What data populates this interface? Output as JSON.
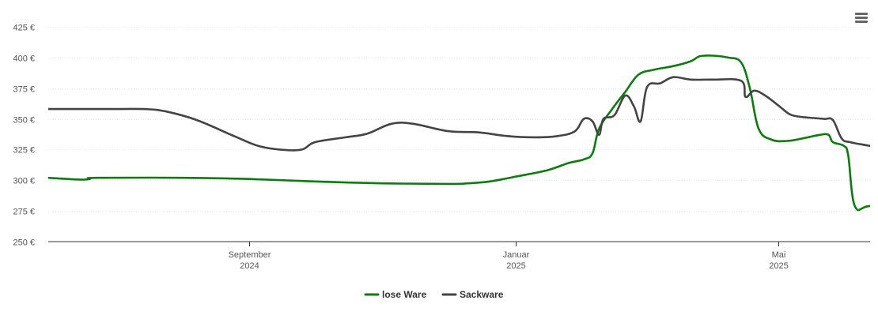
{
  "menu": {
    "icon": "hamburger-menu-icon"
  },
  "chart_data": {
    "type": "line",
    "title": "",
    "xlabel": "",
    "ylabel": "",
    "ylim": [
      250,
      425
    ],
    "y_ticks": [
      "250 €",
      "275 €",
      "300 €",
      "325 €",
      "350 €",
      "375 €",
      "400 €",
      "425 €"
    ],
    "y_tick_values": [
      250,
      275,
      300,
      325,
      350,
      375,
      400,
      425
    ],
    "xlim": [
      "2024-06-01",
      "2025-06-12"
    ],
    "x_ticks": [
      {
        "date": "2024-09-01",
        "label1": "September",
        "label2": "2024"
      },
      {
        "date": "2025-01-01",
        "label1": "Januar",
        "label2": "2025"
      },
      {
        "date": "2025-05-01",
        "label1": "Mai",
        "label2": "2025"
      }
    ],
    "grid": true,
    "legend_position": "bottom-center",
    "series": [
      {
        "name": "lose Ware",
        "color": "#0a7d0a",
        "points": [
          [
            "2024-06-01",
            302
          ],
          [
            "2024-06-10",
            301
          ],
          [
            "2024-06-17",
            300.5
          ],
          [
            "2024-06-20",
            301
          ],
          [
            "2024-06-23",
            302
          ],
          [
            "2024-08-01",
            302
          ],
          [
            "2024-09-01",
            301
          ],
          [
            "2024-10-01",
            299
          ],
          [
            "2024-11-01",
            297.5
          ],
          [
            "2024-12-01",
            297
          ],
          [
            "2024-12-10",
            297.5
          ],
          [
            "2024-12-20",
            299
          ],
          [
            "2025-01-01",
            303
          ],
          [
            "2025-01-15",
            308
          ],
          [
            "2025-01-25",
            314
          ],
          [
            "2025-02-01",
            317
          ],
          [
            "2025-02-05",
            322
          ],
          [
            "2025-02-08",
            342
          ],
          [
            "2025-02-14",
            358
          ],
          [
            "2025-02-20",
            372
          ],
          [
            "2025-02-26",
            386
          ],
          [
            "2025-03-05",
            390
          ],
          [
            "2025-03-14",
            393
          ],
          [
            "2025-03-22",
            397
          ],
          [
            "2025-03-26",
            401
          ],
          [
            "2025-04-01",
            401.5
          ],
          [
            "2025-04-08",
            400
          ],
          [
            "2025-04-14",
            396
          ],
          [
            "2025-04-18",
            375
          ],
          [
            "2025-04-22",
            342
          ],
          [
            "2025-04-28",
            333
          ],
          [
            "2025-05-05",
            332
          ],
          [
            "2025-05-12",
            334
          ],
          [
            "2025-05-20",
            337
          ],
          [
            "2025-05-24",
            337
          ],
          [
            "2025-05-26",
            331
          ],
          [
            "2025-05-31",
            328
          ],
          [
            "2025-06-02",
            320
          ],
          [
            "2025-06-05",
            279
          ],
          [
            "2025-06-12",
            279
          ],
          [
            "2025-06-30",
            279
          ]
        ]
      },
      {
        "name": "Sackware",
        "color": "#444444",
        "points": [
          [
            "2024-06-01",
            358
          ],
          [
            "2024-07-01",
            358
          ],
          [
            "2024-07-15",
            358
          ],
          [
            "2024-07-25",
            356
          ],
          [
            "2024-08-08",
            349
          ],
          [
            "2024-08-25",
            336
          ],
          [
            "2024-09-05",
            328
          ],
          [
            "2024-09-15",
            325
          ],
          [
            "2024-09-25",
            325
          ],
          [
            "2024-10-01",
            331
          ],
          [
            "2024-10-15",
            335
          ],
          [
            "2024-10-25",
            338
          ],
          [
            "2024-11-05",
            346
          ],
          [
            "2024-11-15",
            346
          ],
          [
            "2024-12-01",
            340
          ],
          [
            "2024-12-15",
            339
          ],
          [
            "2024-12-28",
            336
          ],
          [
            "2025-01-10",
            335
          ],
          [
            "2025-01-20",
            336
          ],
          [
            "2025-01-28",
            340
          ],
          [
            "2025-02-01",
            350
          ],
          [
            "2025-02-05",
            348
          ],
          [
            "2025-02-08",
            337
          ],
          [
            "2025-02-10",
            350
          ],
          [
            "2025-02-15",
            353
          ],
          [
            "2025-02-20",
            369
          ],
          [
            "2025-02-24",
            360
          ],
          [
            "2025-02-27",
            348
          ],
          [
            "2025-03-02",
            376
          ],
          [
            "2025-03-08",
            379
          ],
          [
            "2025-03-14",
            384
          ],
          [
            "2025-03-22",
            382
          ],
          [
            "2025-04-01",
            382
          ],
          [
            "2025-04-14",
            381
          ],
          [
            "2025-04-16",
            368
          ],
          [
            "2025-04-20",
            373
          ],
          [
            "2025-04-25",
            369
          ],
          [
            "2025-05-01",
            361
          ],
          [
            "2025-05-06",
            354
          ],
          [
            "2025-05-10",
            352
          ],
          [
            "2025-05-15",
            351
          ],
          [
            "2025-05-22",
            350
          ],
          [
            "2025-05-26",
            349
          ],
          [
            "2025-05-30",
            334
          ],
          [
            "2025-06-03",
            331
          ],
          [
            "2025-06-12",
            328
          ],
          [
            "2025-06-20",
            325
          ],
          [
            "2025-06-30",
            319
          ]
        ]
      }
    ]
  }
}
